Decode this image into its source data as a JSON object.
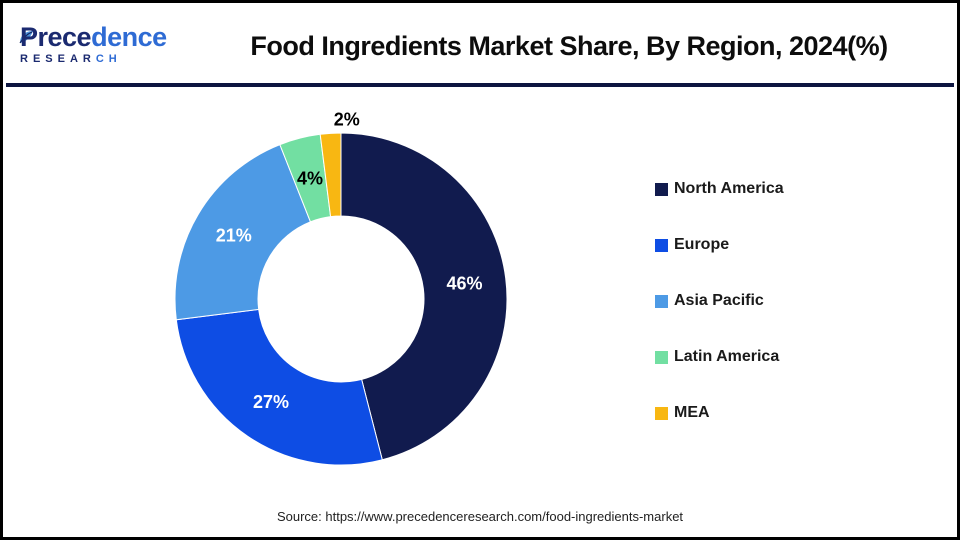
{
  "header": {
    "logo": {
      "name_dark": "Prece",
      "name_light": "dence",
      "sub_dark": "RESEAR",
      "sub_light": "CH"
    },
    "title": "Food Ingredients Market Share, By Region, 2024(%)"
  },
  "chart_data": {
    "type": "pie",
    "subtype": "donut",
    "title": "Food Ingredients Market Share, By Region, 2024(%)",
    "categories": [
      "North America",
      "Europe",
      "Asia Pacific",
      "Latin America",
      "MEA"
    ],
    "values": [
      46,
      27,
      21,
      4,
      2
    ],
    "labels": [
      "46%",
      "27%",
      "21%",
      "4%",
      "2%"
    ],
    "colors": [
      "#111B4E",
      "#0E4DE4",
      "#4D9AE5",
      "#72DFA2",
      "#F8B712"
    ],
    "label_colors": [
      "#FFFFFF",
      "#FFFFFF",
      "#FFFFFF",
      "#000000",
      "#000000"
    ],
    "label_placement": [
      "inside",
      "inside",
      "inside",
      "inside",
      "outside"
    ],
    "start_angle_deg": 0,
    "clockwise": true,
    "inner_radius_ratio": 0.5,
    "legend_position": "right",
    "accent_colors": {
      "divider_navy": "#0D1540",
      "logo_dark": "#1B2A70",
      "logo_blue": "#2E6BD4"
    }
  },
  "footer": {
    "source": "Source: https://www.precedenceresearch.com/food-ingredients-market"
  }
}
